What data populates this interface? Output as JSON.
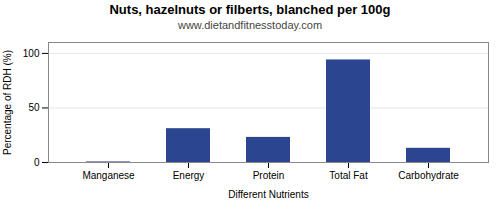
{
  "chart_data": {
    "type": "bar",
    "title": "Nuts, hazelnuts or filberts, blanched per 100g",
    "subtitle": "www.dietandfitnesstoday.com",
    "xlabel": "Different Nutrients",
    "ylabel": "Percentage of RDH (%)",
    "categories": [
      "Manganese",
      "Energy",
      "Protein",
      "Total Fat",
      "Carbohydrate"
    ],
    "values": [
      0.5,
      31,
      23,
      94,
      13
    ],
    "color": "#2b4590",
    "ylim": [
      0,
      110
    ],
    "yticks": [
      0,
      50,
      100
    ],
    "grid": true
  }
}
